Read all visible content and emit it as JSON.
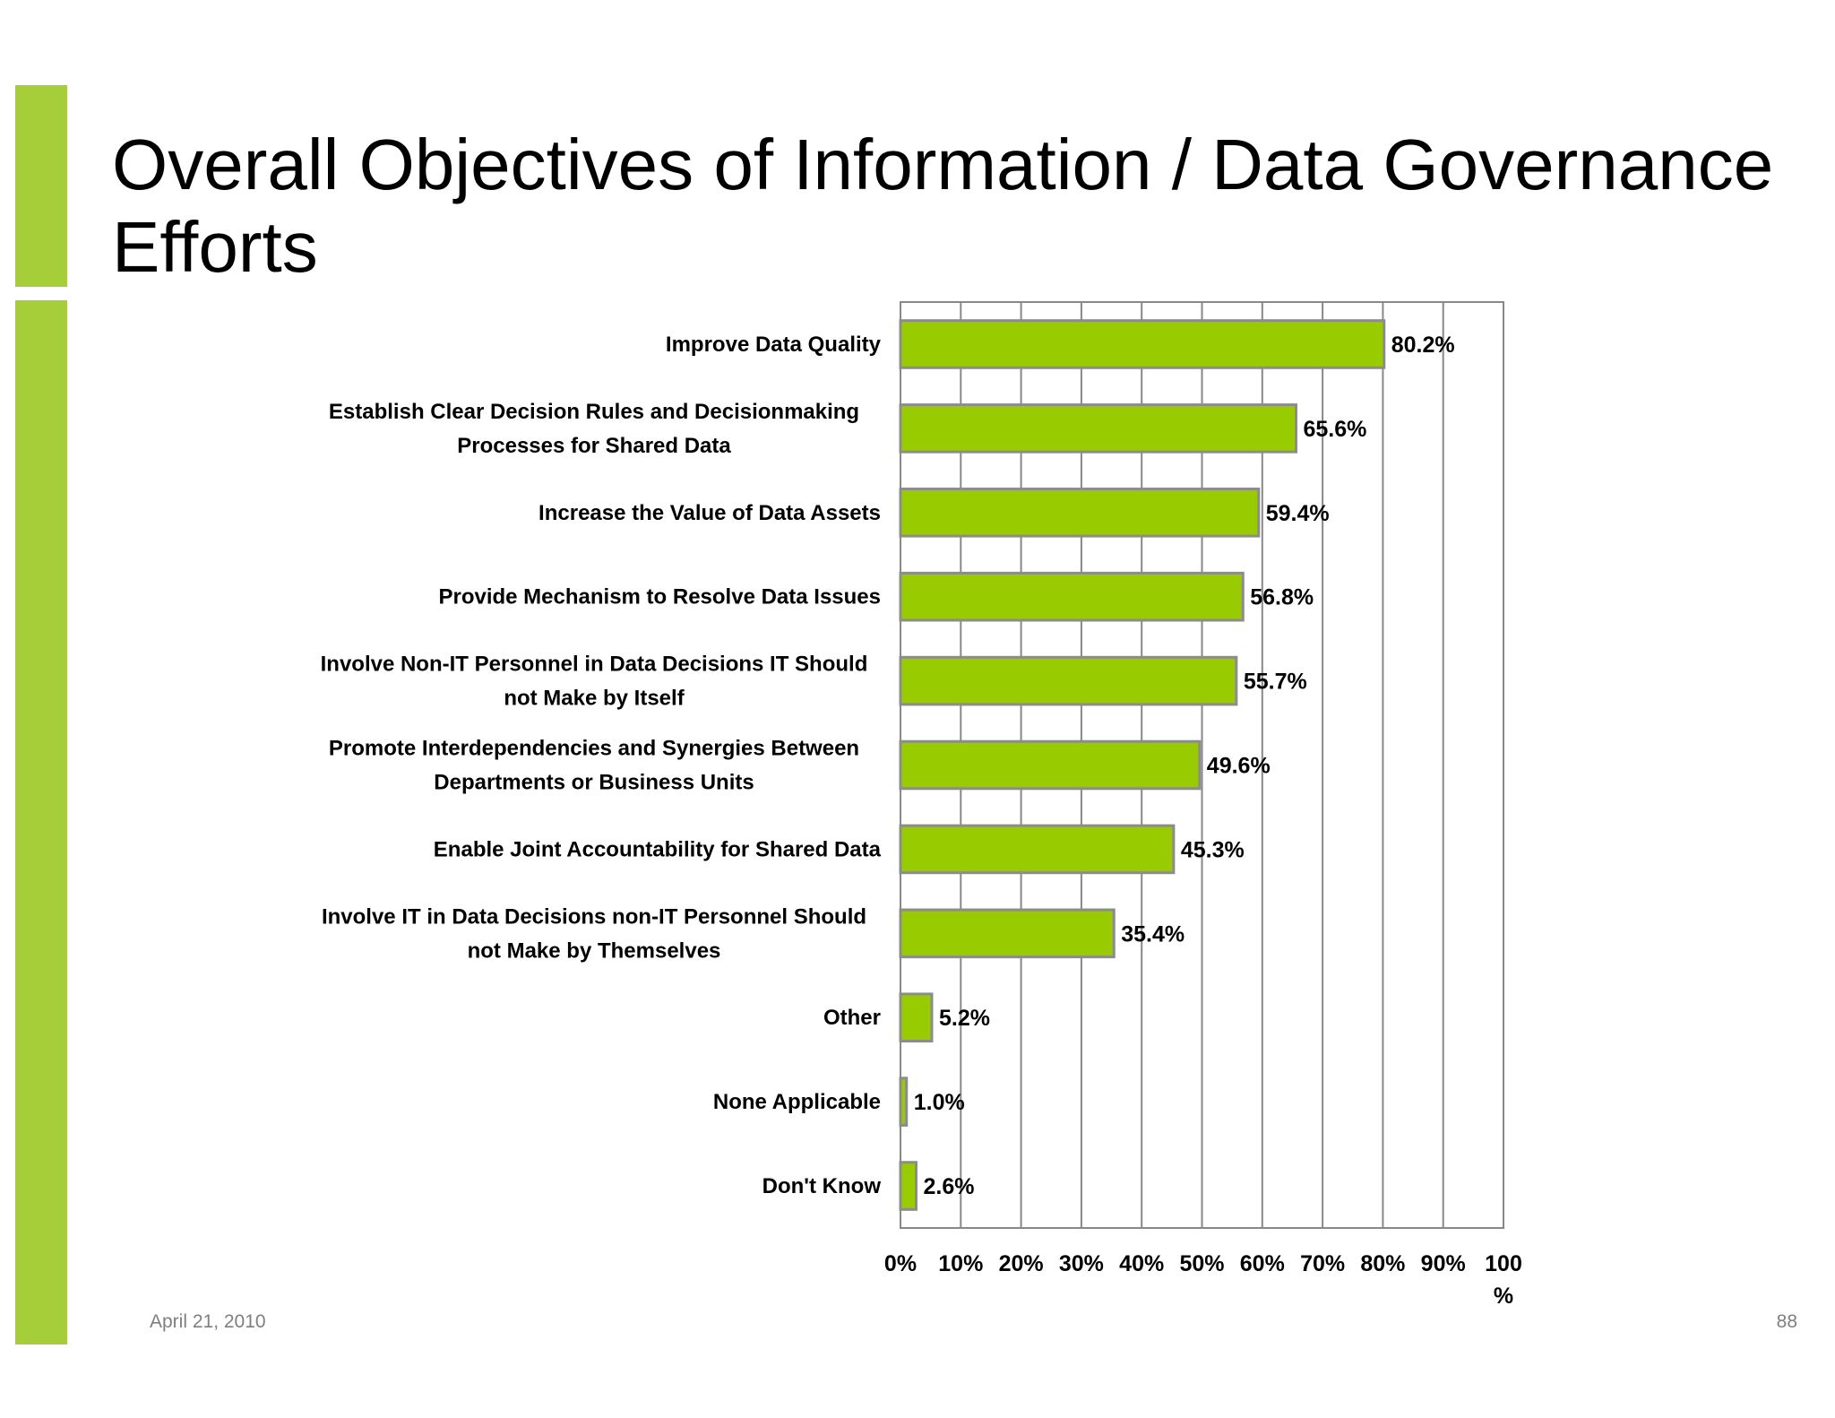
{
  "slide": {
    "title": "Overall Objectives of Information / Data Governance Efforts",
    "date": "April 21, 2010",
    "page_number": "88",
    "accent_color": "#a6ce39"
  },
  "chart_data": {
    "type": "bar",
    "orientation": "horizontal",
    "title": "",
    "xlabel": "",
    "ylabel": "",
    "bar_color": "#99cc00",
    "xlim": [
      0,
      100
    ],
    "grid": true,
    "x_ticks": [
      {
        "value": 0,
        "label": "0%"
      },
      {
        "value": 10,
        "label": "10%"
      },
      {
        "value": 20,
        "label": "20%"
      },
      {
        "value": 30,
        "label": "30%"
      },
      {
        "value": 40,
        "label": "40%"
      },
      {
        "value": 50,
        "label": "50%"
      },
      {
        "value": 60,
        "label": "60%"
      },
      {
        "value": 70,
        "label": "70%"
      },
      {
        "value": 80,
        "label": "80%"
      },
      {
        "value": 90,
        "label": "90%"
      },
      {
        "value": 100,
        "label": "100%"
      }
    ],
    "categories": [
      [
        "Improve Data Quality"
      ],
      [
        "Establish Clear Decision Rules and Decisionmaking",
        "Processes for Shared Data"
      ],
      [
        "Increase the Value of Data Assets"
      ],
      [
        "Provide Mechanism to Resolve Data Issues"
      ],
      [
        "Involve Non-IT Personnel in Data Decisions IT Should",
        "not Make by Itself"
      ],
      [
        "Promote Interdependencies and Synergies Between",
        "Departments or Business Units"
      ],
      [
        "Enable Joint Accountability for Shared Data"
      ],
      [
        "Involve IT in Data Decisions non-IT Personnel Should",
        "not Make by Themselves"
      ],
      [
        "Other"
      ],
      [
        "None Applicable"
      ],
      [
        "Don't Know"
      ]
    ],
    "values": [
      80.2,
      65.6,
      59.4,
      56.8,
      55.7,
      49.6,
      45.3,
      35.4,
      5.2,
      1.0,
      2.6
    ],
    "value_labels": [
      "80.2%",
      "65.6%",
      "59.4%",
      "56.8%",
      "55.7%",
      "49.6%",
      "45.3%",
      "35.4%",
      "5.2%",
      "1.0%",
      "2.6%"
    ]
  }
}
